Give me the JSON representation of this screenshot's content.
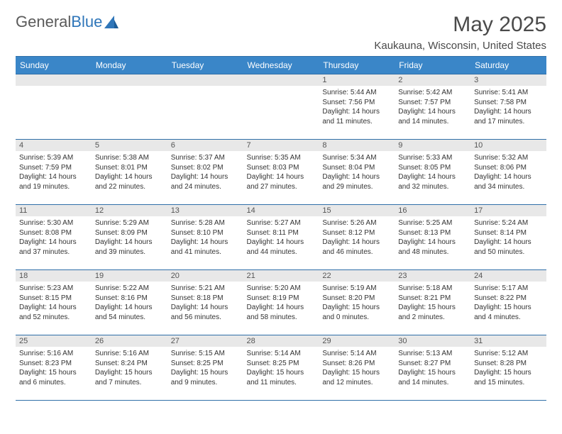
{
  "logo": {
    "text1": "General",
    "text2": "Blue"
  },
  "title": "May 2025",
  "location": "Kaukauna, Wisconsin, United States",
  "weekdays": [
    "Sunday",
    "Monday",
    "Tuesday",
    "Wednesday",
    "Thursday",
    "Friday",
    "Saturday"
  ],
  "colors": {
    "header_bg": "#3a86c8",
    "header_text": "#ffffff",
    "border": "#2f6fa8",
    "daynum_bg": "#e8e8e8",
    "text": "#333333",
    "title_text": "#4a4a4a"
  },
  "weeks": [
    [
      {
        "n": "",
        "l1": "",
        "l2": "",
        "l3": "",
        "l4": ""
      },
      {
        "n": "",
        "l1": "",
        "l2": "",
        "l3": "",
        "l4": ""
      },
      {
        "n": "",
        "l1": "",
        "l2": "",
        "l3": "",
        "l4": ""
      },
      {
        "n": "",
        "l1": "",
        "l2": "",
        "l3": "",
        "l4": ""
      },
      {
        "n": "1",
        "l1": "Sunrise: 5:44 AM",
        "l2": "Sunset: 7:56 PM",
        "l3": "Daylight: 14 hours",
        "l4": "and 11 minutes."
      },
      {
        "n": "2",
        "l1": "Sunrise: 5:42 AM",
        "l2": "Sunset: 7:57 PM",
        "l3": "Daylight: 14 hours",
        "l4": "and 14 minutes."
      },
      {
        "n": "3",
        "l1": "Sunrise: 5:41 AM",
        "l2": "Sunset: 7:58 PM",
        "l3": "Daylight: 14 hours",
        "l4": "and 17 minutes."
      }
    ],
    [
      {
        "n": "4",
        "l1": "Sunrise: 5:39 AM",
        "l2": "Sunset: 7:59 PM",
        "l3": "Daylight: 14 hours",
        "l4": "and 19 minutes."
      },
      {
        "n": "5",
        "l1": "Sunrise: 5:38 AM",
        "l2": "Sunset: 8:01 PM",
        "l3": "Daylight: 14 hours",
        "l4": "and 22 minutes."
      },
      {
        "n": "6",
        "l1": "Sunrise: 5:37 AM",
        "l2": "Sunset: 8:02 PM",
        "l3": "Daylight: 14 hours",
        "l4": "and 24 minutes."
      },
      {
        "n": "7",
        "l1": "Sunrise: 5:35 AM",
        "l2": "Sunset: 8:03 PM",
        "l3": "Daylight: 14 hours",
        "l4": "and 27 minutes."
      },
      {
        "n": "8",
        "l1": "Sunrise: 5:34 AM",
        "l2": "Sunset: 8:04 PM",
        "l3": "Daylight: 14 hours",
        "l4": "and 29 minutes."
      },
      {
        "n": "9",
        "l1": "Sunrise: 5:33 AM",
        "l2": "Sunset: 8:05 PM",
        "l3": "Daylight: 14 hours",
        "l4": "and 32 minutes."
      },
      {
        "n": "10",
        "l1": "Sunrise: 5:32 AM",
        "l2": "Sunset: 8:06 PM",
        "l3": "Daylight: 14 hours",
        "l4": "and 34 minutes."
      }
    ],
    [
      {
        "n": "11",
        "l1": "Sunrise: 5:30 AM",
        "l2": "Sunset: 8:08 PM",
        "l3": "Daylight: 14 hours",
        "l4": "and 37 minutes."
      },
      {
        "n": "12",
        "l1": "Sunrise: 5:29 AM",
        "l2": "Sunset: 8:09 PM",
        "l3": "Daylight: 14 hours",
        "l4": "and 39 minutes."
      },
      {
        "n": "13",
        "l1": "Sunrise: 5:28 AM",
        "l2": "Sunset: 8:10 PM",
        "l3": "Daylight: 14 hours",
        "l4": "and 41 minutes."
      },
      {
        "n": "14",
        "l1": "Sunrise: 5:27 AM",
        "l2": "Sunset: 8:11 PM",
        "l3": "Daylight: 14 hours",
        "l4": "and 44 minutes."
      },
      {
        "n": "15",
        "l1": "Sunrise: 5:26 AM",
        "l2": "Sunset: 8:12 PM",
        "l3": "Daylight: 14 hours",
        "l4": "and 46 minutes."
      },
      {
        "n": "16",
        "l1": "Sunrise: 5:25 AM",
        "l2": "Sunset: 8:13 PM",
        "l3": "Daylight: 14 hours",
        "l4": "and 48 minutes."
      },
      {
        "n": "17",
        "l1": "Sunrise: 5:24 AM",
        "l2": "Sunset: 8:14 PM",
        "l3": "Daylight: 14 hours",
        "l4": "and 50 minutes."
      }
    ],
    [
      {
        "n": "18",
        "l1": "Sunrise: 5:23 AM",
        "l2": "Sunset: 8:15 PM",
        "l3": "Daylight: 14 hours",
        "l4": "and 52 minutes."
      },
      {
        "n": "19",
        "l1": "Sunrise: 5:22 AM",
        "l2": "Sunset: 8:16 PM",
        "l3": "Daylight: 14 hours",
        "l4": "and 54 minutes."
      },
      {
        "n": "20",
        "l1": "Sunrise: 5:21 AM",
        "l2": "Sunset: 8:18 PM",
        "l3": "Daylight: 14 hours",
        "l4": "and 56 minutes."
      },
      {
        "n": "21",
        "l1": "Sunrise: 5:20 AM",
        "l2": "Sunset: 8:19 PM",
        "l3": "Daylight: 14 hours",
        "l4": "and 58 minutes."
      },
      {
        "n": "22",
        "l1": "Sunrise: 5:19 AM",
        "l2": "Sunset: 8:20 PM",
        "l3": "Daylight: 15 hours",
        "l4": "and 0 minutes."
      },
      {
        "n": "23",
        "l1": "Sunrise: 5:18 AM",
        "l2": "Sunset: 8:21 PM",
        "l3": "Daylight: 15 hours",
        "l4": "and 2 minutes."
      },
      {
        "n": "24",
        "l1": "Sunrise: 5:17 AM",
        "l2": "Sunset: 8:22 PM",
        "l3": "Daylight: 15 hours",
        "l4": "and 4 minutes."
      }
    ],
    [
      {
        "n": "25",
        "l1": "Sunrise: 5:16 AM",
        "l2": "Sunset: 8:23 PM",
        "l3": "Daylight: 15 hours",
        "l4": "and 6 minutes."
      },
      {
        "n": "26",
        "l1": "Sunrise: 5:16 AM",
        "l2": "Sunset: 8:24 PM",
        "l3": "Daylight: 15 hours",
        "l4": "and 7 minutes."
      },
      {
        "n": "27",
        "l1": "Sunrise: 5:15 AM",
        "l2": "Sunset: 8:25 PM",
        "l3": "Daylight: 15 hours",
        "l4": "and 9 minutes."
      },
      {
        "n": "28",
        "l1": "Sunrise: 5:14 AM",
        "l2": "Sunset: 8:25 PM",
        "l3": "Daylight: 15 hours",
        "l4": "and 11 minutes."
      },
      {
        "n": "29",
        "l1": "Sunrise: 5:14 AM",
        "l2": "Sunset: 8:26 PM",
        "l3": "Daylight: 15 hours",
        "l4": "and 12 minutes."
      },
      {
        "n": "30",
        "l1": "Sunrise: 5:13 AM",
        "l2": "Sunset: 8:27 PM",
        "l3": "Daylight: 15 hours",
        "l4": "and 14 minutes."
      },
      {
        "n": "31",
        "l1": "Sunrise: 5:12 AM",
        "l2": "Sunset: 8:28 PM",
        "l3": "Daylight: 15 hours",
        "l4": "and 15 minutes."
      }
    ]
  ]
}
